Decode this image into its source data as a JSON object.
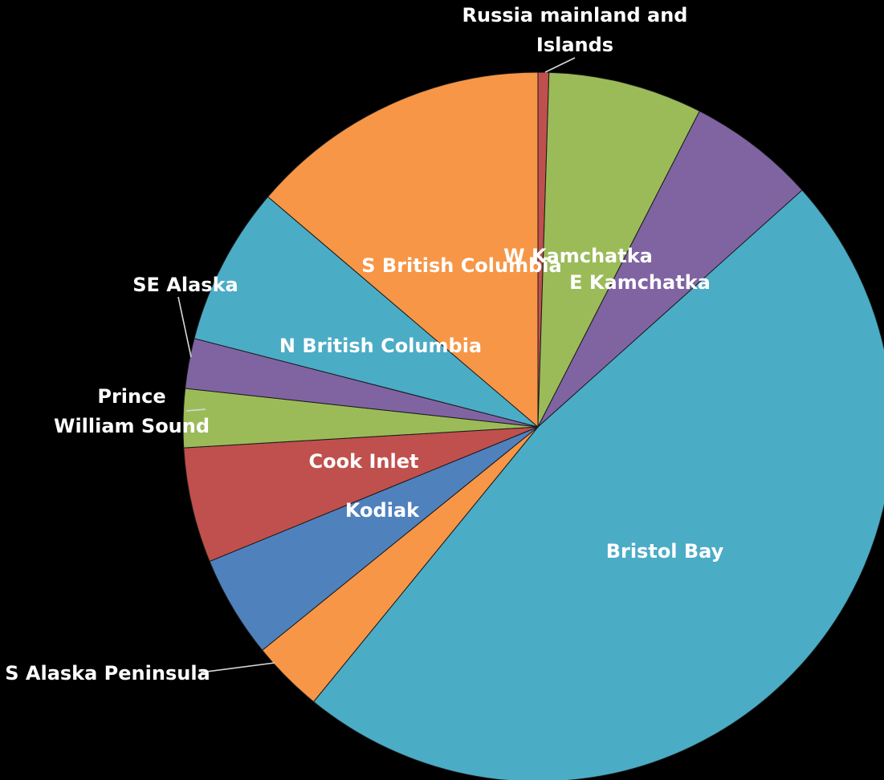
{
  "chart_data": {
    "type": "pie",
    "title": "",
    "start": "top",
    "direction": "clockwise",
    "label_color": "#ffffff",
    "background": "#000000",
    "slices": [
      {
        "label": "Russia mainland and Islands",
        "value": 0.5,
        "color": "#c0504d"
      },
      {
        "label": "W Kamchatka",
        "value": 7.1,
        "color": "#9bbb59"
      },
      {
        "label": "E Kamchatka",
        "value": 5.9,
        "color": "#8064a2"
      },
      {
        "label": "Bristol Bay",
        "value": 48.0,
        "color": "#4bacc6"
      },
      {
        "label": "S Alaska Peninsula",
        "value": 3.3,
        "color": "#f79646"
      },
      {
        "label": "Kodiak",
        "value": 4.7,
        "color": "#4f81bd"
      },
      {
        "label": "Cook Inlet",
        "value": 5.3,
        "color": "#c0504d"
      },
      {
        "label": "Prince William Sound",
        "value": 2.7,
        "color": "#9bbb59"
      },
      {
        "label": "SE Alaska",
        "value": 2.3,
        "color": "#8064a2"
      },
      {
        "label": "N British Columbia",
        "value": 7.3,
        "color": "#4bacc6"
      },
      {
        "label": "S British Columbia",
        "value": 13.9,
        "color": "#f79646"
      }
    ]
  }
}
